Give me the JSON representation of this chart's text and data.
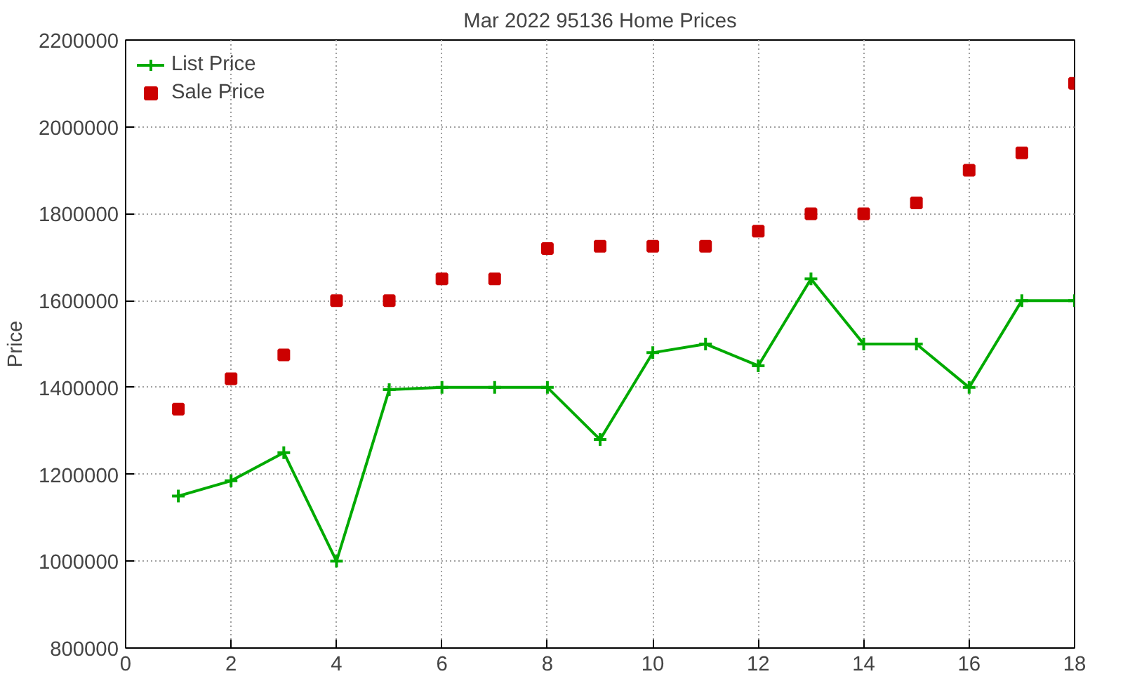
{
  "chart_data": {
    "type": "line",
    "title": "Mar 2022 95136 Home Prices",
    "ylabel": "Price",
    "x": [
      1,
      2,
      3,
      4,
      5,
      6,
      7,
      8,
      9,
      10,
      11,
      12,
      13,
      14,
      15,
      16,
      17,
      18
    ],
    "series": [
      {
        "name": "List Price",
        "marker": "cross",
        "color": "#00aa00",
        "values": [
          1150000,
          1185000,
          1250000,
          1000000,
          1395000,
          1400000,
          1400000,
          1400000,
          1280000,
          1480000,
          1500000,
          1450000,
          1650000,
          1500000,
          1500000,
          1400000,
          1600000,
          1600000
        ]
      },
      {
        "name": "Sale Price",
        "type": "scatter",
        "marker": "square",
        "color": "#cc0000",
        "values": [
          1350000,
          1420000,
          1475000,
          1600000,
          1600000,
          1650000,
          1650000,
          1720000,
          1725000,
          1725000,
          1725000,
          1760000,
          1800000,
          1800000,
          1825000,
          1900000,
          1940000,
          2100000
        ]
      }
    ],
    "xlim": [
      0,
      18
    ],
    "xticks": [
      0,
      2,
      4,
      6,
      8,
      10,
      12,
      14,
      16,
      18
    ],
    "ylim": [
      800000,
      2200000
    ],
    "yticks": [
      800000,
      1000000,
      1200000,
      1400000,
      1600000,
      1800000,
      2000000,
      2200000
    ],
    "grid": true,
    "legend": "top left",
    "line_style": "solid"
  }
}
